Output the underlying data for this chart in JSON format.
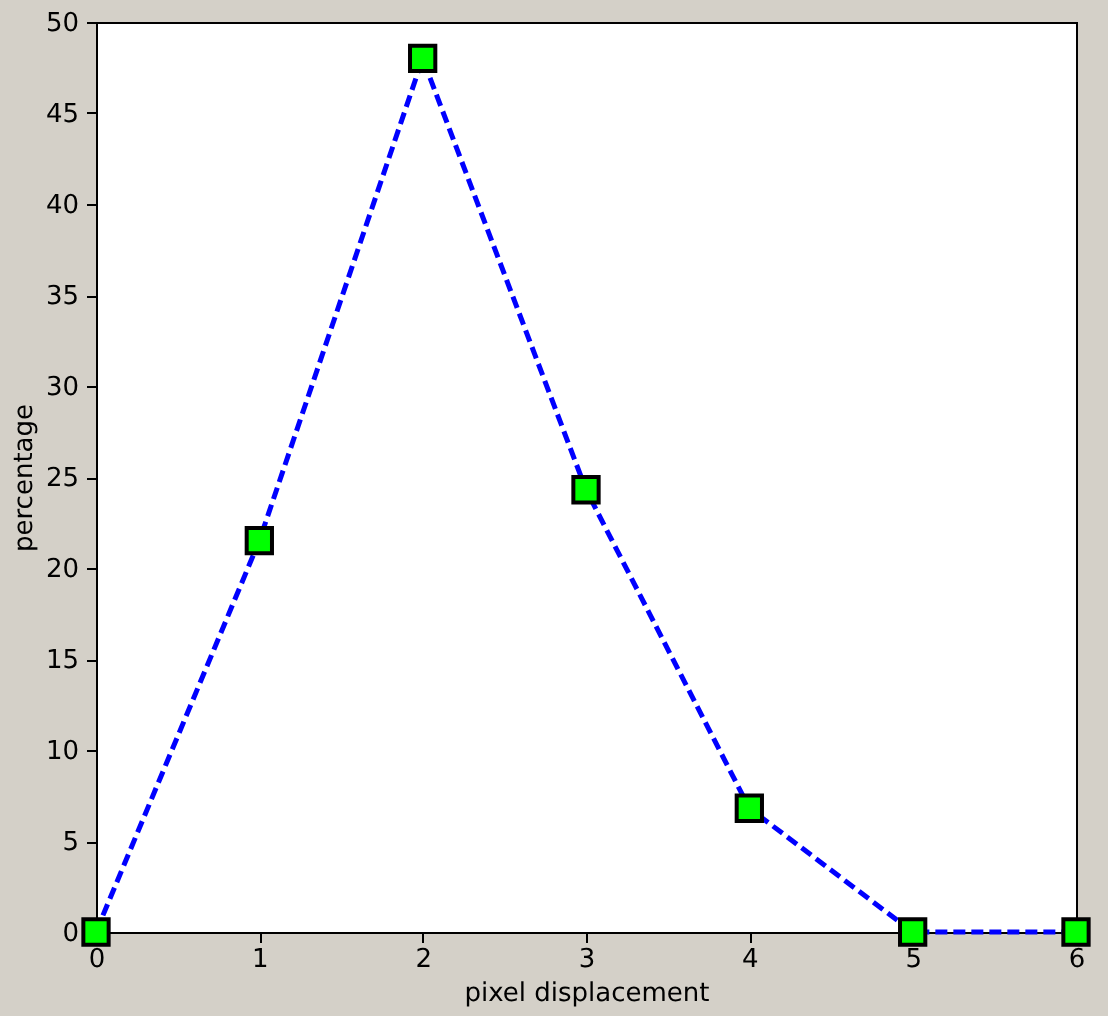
{
  "chart_data": {
    "type": "line",
    "xlabel": "pixel displacement",
    "ylabel": "percentage",
    "x": [
      0,
      1,
      2,
      3,
      4,
      5,
      6
    ],
    "series": [
      {
        "color": "#0000ff",
        "values": [
          0,
          21.5,
          48,
          24.3,
          6.8,
          0,
          0
        ]
      }
    ],
    "xlim": [
      0,
      6
    ],
    "ylim": [
      0,
      50
    ],
    "xticks": [
      0,
      1,
      2,
      3,
      4,
      5,
      6
    ],
    "yticks": [
      0,
      5,
      10,
      15,
      20,
      25,
      30,
      35,
      40,
      45,
      50
    ],
    "marker": "square",
    "line_style": "dashed",
    "grid": false
  }
}
